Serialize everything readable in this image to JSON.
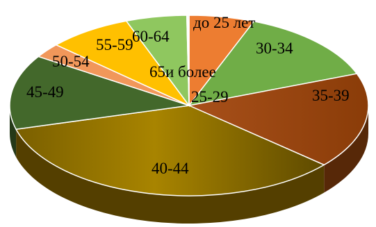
{
  "chart_data": {
    "type": "pie",
    "style": "3d",
    "title": "",
    "legend": "none",
    "categories": [
      "до 25 лет",
      "30-34",
      "35-39",
      "40-44",
      "45-49",
      "50-54",
      "55-59",
      "60-64",
      "65и более",
      "25-29"
    ],
    "values": [
      5.9,
      13.4,
      17.2,
      34.4,
      13.4,
      2.6,
      7.6,
      5.5,
      0.1,
      0.1
    ],
    "colors": [
      "#ED7D31",
      "#70AD47",
      "#9E480E",
      "#997300",
      "#43682B",
      "#F1975A",
      "#FFC000",
      "#8FC75F",
      "#5B9BD5",
      "#A5A5A5"
    ]
  }
}
